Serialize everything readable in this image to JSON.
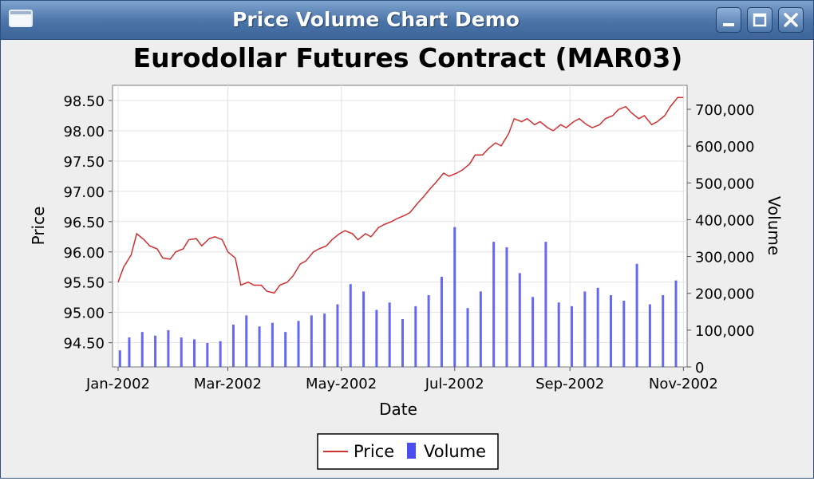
{
  "window": {
    "title": "Price Volume Chart Demo",
    "buttons": [
      {
        "icon": "minimize-icon"
      },
      {
        "icon": "maximize-icon"
      },
      {
        "icon": "close-icon"
      }
    ]
  },
  "chart_data": {
    "type": "line+bar",
    "title": "Eurodollar Futures Contract (MAR03)",
    "xlabel": "Date",
    "ylabel": "Price",
    "y2label": "Volume",
    "x_ticks": [
      "Jan-2002",
      "Mar-2002",
      "May-2002",
      "Jul-2002",
      "Sep-2002",
      "Nov-2002"
    ],
    "y_ticks": [
      "94.50",
      "95.00",
      "95.50",
      "96.00",
      "96.50",
      "97.00",
      "97.50",
      "98.00",
      "98.50"
    ],
    "y_tick_values": [
      94.5,
      95.0,
      95.5,
      96.0,
      96.5,
      97.0,
      97.5,
      98.0,
      98.5
    ],
    "y_range": [
      94.1,
      98.75
    ],
    "y2_ticks": [
      "0",
      "100,000",
      "200,000",
      "300,000",
      "400,000",
      "500,000",
      "600,000",
      "700,000"
    ],
    "y2_tick_values": [
      0,
      100000,
      200000,
      300000,
      400000,
      500000,
      600000,
      700000
    ],
    "y2_range": [
      0,
      765000
    ],
    "x_range": [
      "2001-12-29",
      "2002-11-03"
    ],
    "grid": true,
    "legend_position": "bottom",
    "series": [
      {
        "name": "Price",
        "kind": "line",
        "color": "#d03030",
        "points": [
          [
            "2002-01-01",
            95.5
          ],
          [
            "2002-01-04",
            95.75
          ],
          [
            "2002-01-08",
            95.95
          ],
          [
            "2002-01-11",
            96.3
          ],
          [
            "2002-01-15",
            96.2
          ],
          [
            "2002-01-18",
            96.1
          ],
          [
            "2002-01-22",
            96.05
          ],
          [
            "2002-01-25",
            95.9
          ],
          [
            "2002-01-29",
            95.88
          ],
          [
            "2002-02-01",
            96.0
          ],
          [
            "2002-02-05",
            96.05
          ],
          [
            "2002-02-08",
            96.2
          ],
          [
            "2002-02-12",
            96.22
          ],
          [
            "2002-02-15",
            96.1
          ],
          [
            "2002-02-19",
            96.22
          ],
          [
            "2002-02-22",
            96.25
          ],
          [
            "2002-02-26",
            96.2
          ],
          [
            "2002-03-01",
            96.0
          ],
          [
            "2002-03-05",
            95.9
          ],
          [
            "2002-03-08",
            95.45
          ],
          [
            "2002-03-12",
            95.5
          ],
          [
            "2002-03-15",
            95.45
          ],
          [
            "2002-03-19",
            95.45
          ],
          [
            "2002-03-22",
            95.35
          ],
          [
            "2002-03-26",
            95.32
          ],
          [
            "2002-03-29",
            95.45
          ],
          [
            "2002-04-02",
            95.5
          ],
          [
            "2002-04-05",
            95.6
          ],
          [
            "2002-04-09",
            95.8
          ],
          [
            "2002-04-12",
            95.85
          ],
          [
            "2002-04-16",
            96.0
          ],
          [
            "2002-04-19",
            96.05
          ],
          [
            "2002-04-23",
            96.1
          ],
          [
            "2002-04-26",
            96.2
          ],
          [
            "2002-04-30",
            96.3
          ],
          [
            "2002-05-03",
            96.35
          ],
          [
            "2002-05-07",
            96.3
          ],
          [
            "2002-05-10",
            96.2
          ],
          [
            "2002-05-14",
            96.3
          ],
          [
            "2002-05-17",
            96.25
          ],
          [
            "2002-05-21",
            96.4
          ],
          [
            "2002-05-24",
            96.45
          ],
          [
            "2002-05-28",
            96.5
          ],
          [
            "2002-05-31",
            96.55
          ],
          [
            "2002-06-04",
            96.6
          ],
          [
            "2002-06-07",
            96.65
          ],
          [
            "2002-06-11",
            96.8
          ],
          [
            "2002-06-14",
            96.9
          ],
          [
            "2002-06-18",
            97.05
          ],
          [
            "2002-06-21",
            97.15
          ],
          [
            "2002-06-25",
            97.3
          ],
          [
            "2002-06-28",
            97.25
          ],
          [
            "2002-07-02",
            97.3
          ],
          [
            "2002-07-05",
            97.35
          ],
          [
            "2002-07-09",
            97.45
          ],
          [
            "2002-07-12",
            97.6
          ],
          [
            "2002-07-16",
            97.6
          ],
          [
            "2002-07-19",
            97.7
          ],
          [
            "2002-07-23",
            97.8
          ],
          [
            "2002-07-26",
            97.75
          ],
          [
            "2002-07-30",
            97.95
          ],
          [
            "2002-08-02",
            98.2
          ],
          [
            "2002-08-06",
            98.15
          ],
          [
            "2002-08-09",
            98.2
          ],
          [
            "2002-08-13",
            98.1
          ],
          [
            "2002-08-16",
            98.15
          ],
          [
            "2002-08-20",
            98.05
          ],
          [
            "2002-08-23",
            98.0
          ],
          [
            "2002-08-27",
            98.1
          ],
          [
            "2002-08-30",
            98.05
          ],
          [
            "2002-09-03",
            98.15
          ],
          [
            "2002-09-06",
            98.2
          ],
          [
            "2002-09-10",
            98.1
          ],
          [
            "2002-09-13",
            98.05
          ],
          [
            "2002-09-17",
            98.1
          ],
          [
            "2002-09-20",
            98.2
          ],
          [
            "2002-09-24",
            98.25
          ],
          [
            "2002-09-27",
            98.35
          ],
          [
            "2002-10-01",
            98.4
          ],
          [
            "2002-10-04",
            98.3
          ],
          [
            "2002-10-08",
            98.2
          ],
          [
            "2002-10-11",
            98.25
          ],
          [
            "2002-10-15",
            98.1
          ],
          [
            "2002-10-18",
            98.15
          ],
          [
            "2002-10-22",
            98.25
          ],
          [
            "2002-10-25",
            98.4
          ],
          [
            "2002-10-29",
            98.55
          ],
          [
            "2002-11-01",
            98.55
          ]
        ]
      },
      {
        "name": "Volume",
        "kind": "bar",
        "color": "#4a4ef0",
        "points": [
          [
            "2002-01-02",
            45000
          ],
          [
            "2002-01-07",
            80000
          ],
          [
            "2002-01-14",
            95000
          ],
          [
            "2002-01-21",
            85000
          ],
          [
            "2002-01-28",
            100000
          ],
          [
            "2002-02-04",
            80000
          ],
          [
            "2002-02-11",
            75000
          ],
          [
            "2002-02-18",
            65000
          ],
          [
            "2002-02-25",
            70000
          ],
          [
            "2002-03-04",
            115000
          ],
          [
            "2002-03-11",
            140000
          ],
          [
            "2002-03-18",
            110000
          ],
          [
            "2002-03-25",
            120000
          ],
          [
            "2002-04-01",
            95000
          ],
          [
            "2002-04-08",
            125000
          ],
          [
            "2002-04-15",
            140000
          ],
          [
            "2002-04-22",
            145000
          ],
          [
            "2002-04-29",
            170000
          ],
          [
            "2002-05-06",
            225000
          ],
          [
            "2002-05-13",
            205000
          ],
          [
            "2002-05-20",
            155000
          ],
          [
            "2002-05-27",
            175000
          ],
          [
            "2002-06-03",
            130000
          ],
          [
            "2002-06-10",
            165000
          ],
          [
            "2002-06-17",
            195000
          ],
          [
            "2002-06-24",
            245000
          ],
          [
            "2002-07-01",
            380000
          ],
          [
            "2002-07-08",
            160000
          ],
          [
            "2002-07-15",
            205000
          ],
          [
            "2002-07-22",
            340000
          ],
          [
            "2002-07-29",
            325000
          ],
          [
            "2002-08-05",
            255000
          ],
          [
            "2002-08-12",
            190000
          ],
          [
            "2002-08-19",
            340000
          ],
          [
            "2002-08-26",
            175000
          ],
          [
            "2002-09-02",
            165000
          ],
          [
            "2002-09-09",
            205000
          ],
          [
            "2002-09-16",
            215000
          ],
          [
            "2002-09-23",
            195000
          ],
          [
            "2002-09-30",
            180000
          ],
          [
            "2002-10-07",
            280000
          ],
          [
            "2002-10-14",
            170000
          ],
          [
            "2002-10-21",
            195000
          ],
          [
            "2002-10-28",
            235000
          ]
        ]
      }
    ]
  }
}
